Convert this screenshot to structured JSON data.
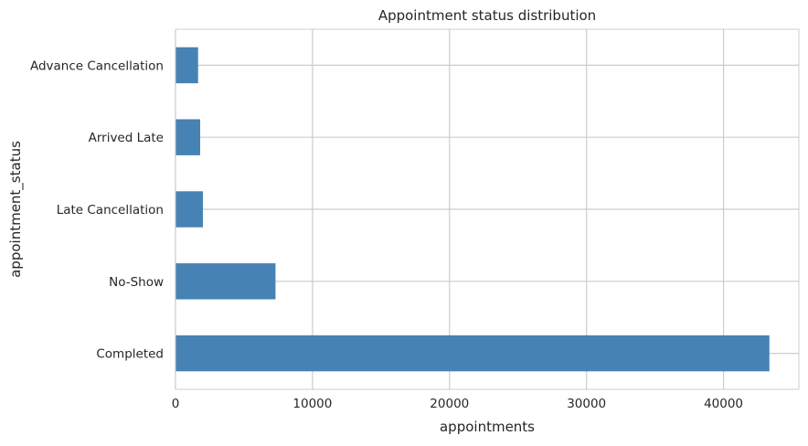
{
  "chart_data": {
    "type": "bar",
    "orientation": "horizontal",
    "title": "Appointment status distribution",
    "xlabel": "appointments",
    "ylabel": "appointment_status",
    "categories": [
      "Completed",
      "No-Show",
      "Late Cancellation",
      "Arrived Late",
      "Advance Cancellation"
    ],
    "values": [
      43350,
      7300,
      2000,
      1800,
      1650
    ],
    "xlim": [
      0,
      45500
    ],
    "xticks": [
      0,
      10000,
      20000,
      30000,
      40000
    ],
    "xtick_labels": [
      "0",
      "10000",
      "20000",
      "30000",
      "40000"
    ],
    "grid": true,
    "legend": "none",
    "colors": {
      "bar": "#4682b4",
      "grid": "#cccccc",
      "text": "#262626",
      "background": "#ffffff"
    }
  }
}
